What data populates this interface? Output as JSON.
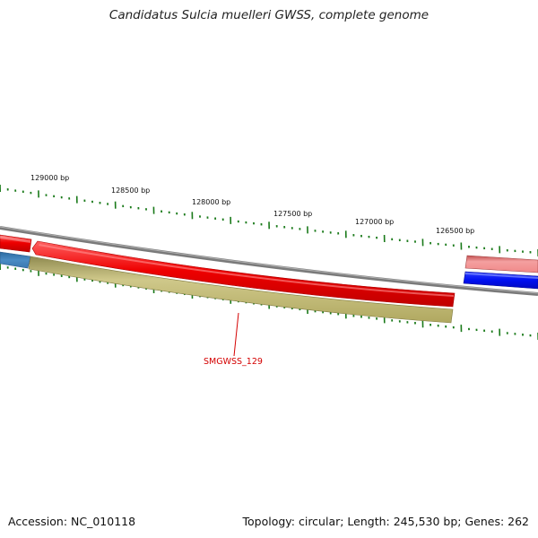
{
  "header": {
    "title": "Candidatus Sulcia muelleri GWSS, complete genome"
  },
  "footer": {
    "accession": "Accession: NC_010118",
    "stats": "Topology: circular; Length: 245,530 bp; Genes: 262"
  },
  "map": {
    "tick_labels": [
      "129000 bp",
      "128500 bp",
      "128000 bp",
      "127500 bp",
      "127000 bp",
      "126500 bp"
    ],
    "gene_label": "SMGWSS_129",
    "colors": {
      "backbone": "#8a8a8a",
      "tick": "#1a7a1a",
      "gene_red": "#ee0000",
      "gene_olive": "#c8c080",
      "gene_blue": "#0018f0",
      "gene_steel": "#3f7fb5",
      "gene_pink": "#f09090",
      "label": "#d40000"
    }
  }
}
